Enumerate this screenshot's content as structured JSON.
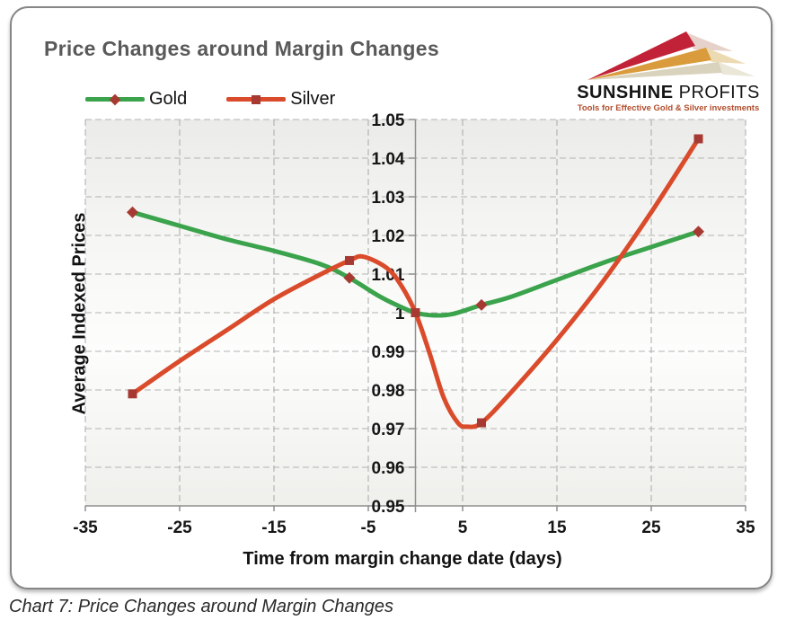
{
  "header": {
    "title": "Price Changes around Margin Changes"
  },
  "logo": {
    "brand_bold": "SUNSHINE",
    "brand_light": "PROFITS",
    "tagline": "Tools for Effective Gold & Silver investments"
  },
  "caption": {
    "text": "Chart 7: Price Changes around Margin Changes"
  },
  "chart_data": {
    "type": "line",
    "title": "Price Changes around Margin Changes",
    "xlabel": "Time from margin change date (days)",
    "ylabel": "Average Indexed Prices",
    "xlim": [
      -35,
      35
    ],
    "ylim": [
      0.95,
      1.05
    ],
    "xticks": [
      -35,
      -25,
      -15,
      -5,
      5,
      15,
      25,
      35
    ],
    "yticks": [
      {
        "v": 1.05,
        "label": "1.05"
      },
      {
        "v": 1.04,
        "label": "1.04"
      },
      {
        "v": 1.03,
        "label": "1.03"
      },
      {
        "v": 1.02,
        "label": "1.02"
      },
      {
        "v": 1.01,
        "label": "1.01"
      },
      {
        "v": 1.0,
        "label": "1"
      },
      {
        "v": 0.99,
        "label": "0.99"
      },
      {
        "v": 0.98,
        "label": "0.98"
      },
      {
        "v": 0.97,
        "label": "0.97"
      },
      {
        "v": 0.96,
        "label": "0.96"
      },
      {
        "v": 0.95,
        "label": "0.95"
      }
    ],
    "grid": true,
    "legend_position": "top-left",
    "colors": {
      "grid": "#b3b3b3",
      "axis": "#8f8f8f",
      "tick_text": "#161616"
    },
    "series": [
      {
        "name": "Gold",
        "color": "#3aa34c",
        "marker": "diamond",
        "marker_color": "#a63a32",
        "markers": [
          [
            -30,
            1.026
          ],
          [
            -7,
            1.009
          ],
          [
            7,
            1.002
          ],
          [
            30,
            1.021
          ]
        ],
        "curve": [
          [
            -30,
            1.026
          ],
          [
            -25,
            1.0225
          ],
          [
            -20,
            1.019
          ],
          [
            -15,
            1.016
          ],
          [
            -10,
            1.0125
          ],
          [
            -7,
            1.009
          ],
          [
            -4,
            1.0045
          ],
          [
            -2,
            1.002
          ],
          [
            0,
            1.0
          ],
          [
            2,
            0.9993
          ],
          [
            4,
            0.9997
          ],
          [
            7,
            1.002
          ],
          [
            10,
            1.004
          ],
          [
            15,
            1.0085
          ],
          [
            20,
            1.013
          ],
          [
            25,
            1.017
          ],
          [
            30,
            1.021
          ]
        ]
      },
      {
        "name": "Silver",
        "color": "#d94b2b",
        "marker": "square",
        "marker_color": "#a63a32",
        "markers": [
          [
            -30,
            0.979
          ],
          [
            -7,
            1.0135
          ],
          [
            0,
            1.0
          ],
          [
            7,
            0.9715
          ],
          [
            30,
            1.045
          ]
        ],
        "curve": [
          [
            -30,
            0.979
          ],
          [
            -25,
            0.9875
          ],
          [
            -20,
            0.9955
          ],
          [
            -15,
            1.0035
          ],
          [
            -10,
            1.01
          ],
          [
            -7,
            1.0135
          ],
          [
            -5.5,
            1.0145
          ],
          [
            -3,
            1.0115
          ],
          [
            -1.5,
            1.007
          ],
          [
            0,
            1.0
          ],
          [
            1.5,
            0.9895
          ],
          [
            3,
            0.978
          ],
          [
            4.5,
            0.9715
          ],
          [
            5.5,
            0.9705
          ],
          [
            7,
            0.9715
          ],
          [
            10,
            0.979
          ],
          [
            15,
            0.993
          ],
          [
            20,
            1.0085
          ],
          [
            25,
            1.026
          ],
          [
            30,
            1.045
          ]
        ]
      }
    ]
  }
}
